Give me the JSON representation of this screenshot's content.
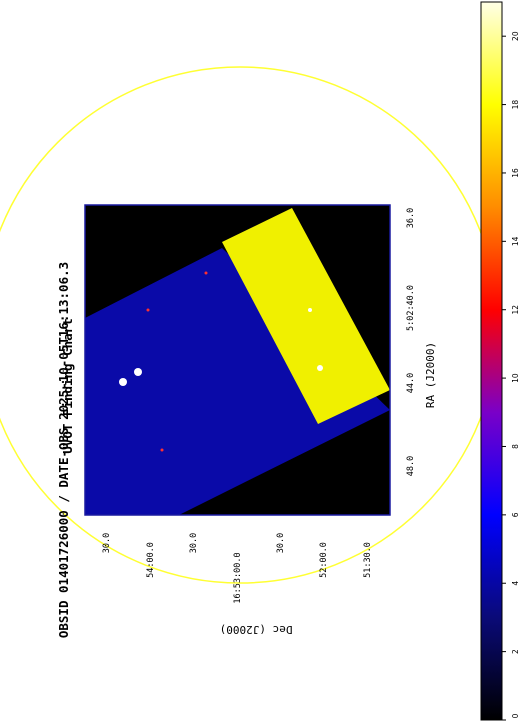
{
  "title": {
    "line1": "UVOT Finding Chart",
    "line2": "OBSID 01401726000 / DATE-OBS 2025-10-05T16:13:06.3"
  },
  "axes": {
    "ra_label": "RA (J2000)",
    "dec_label": "Dec (J2000)",
    "ra_ticks": [
      "48.0",
      "44.0",
      "5:02:40.0",
      "36.0"
    ],
    "dec_ticks": [
      "30.0",
      "54:00.0",
      "30.0",
      "16:53:00.0",
      "30.0",
      "52:00.0",
      "51:30.0"
    ]
  },
  "colorbar": {
    "ticks": [
      "0",
      "2",
      "4",
      "6",
      "8",
      "10",
      "12",
      "14",
      "16",
      "18",
      "20"
    ],
    "min": 0,
    "max": 21,
    "colors": [
      "#000000",
      "#0a0a78",
      "#0000ff",
      "#7a00c8",
      "#ff0000",
      "#ff8c00",
      "#ffff00",
      "#ffffe6"
    ]
  },
  "image": {
    "background_color": "#000000",
    "field_color": "#0a0aa8",
    "bright_region_color": "#f0f000",
    "circle_color": "#ffff33",
    "border_color": "#1a1aa0"
  }
}
